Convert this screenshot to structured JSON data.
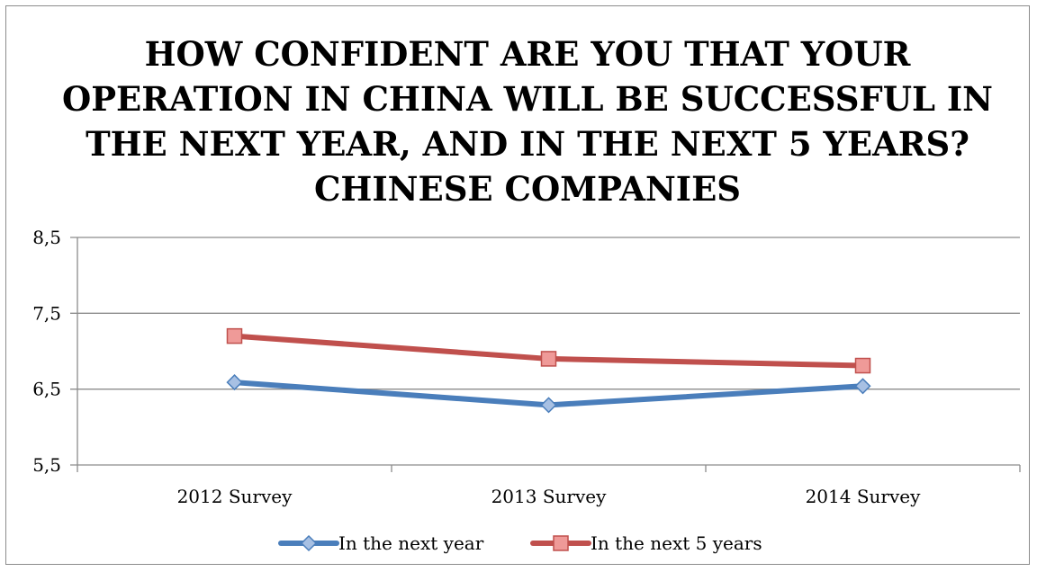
{
  "chart_data": {
    "type": "line",
    "title_lines": [
      "HOW CONFIDENT ARE YOU THAT YOUR",
      "OPERATION IN CHINA WILL BE SUCCESSFUL IN",
      "THE NEXT YEAR, AND IN THE NEXT 5 YEARS?",
      "CHINESE COMPANIES"
    ],
    "categories": [
      "2012 Survey",
      "2013 Survey",
      "2014 Survey"
    ],
    "series": [
      {
        "name": "In the next year",
        "values": [
          6.59,
          6.29,
          6.54
        ],
        "color": "#4a7ebb",
        "marker": "diamond"
      },
      {
        "name": "In the next 5 years",
        "values": [
          7.2,
          6.9,
          6.81
        ],
        "color": "#c0504d",
        "marker": "square"
      }
    ],
    "ylim": [
      5.5,
      8.5
    ],
    "yticks": [
      "5,5",
      "6,5",
      "7,5",
      "8,5"
    ],
    "grid": true,
    "legend_position": "bottom"
  }
}
